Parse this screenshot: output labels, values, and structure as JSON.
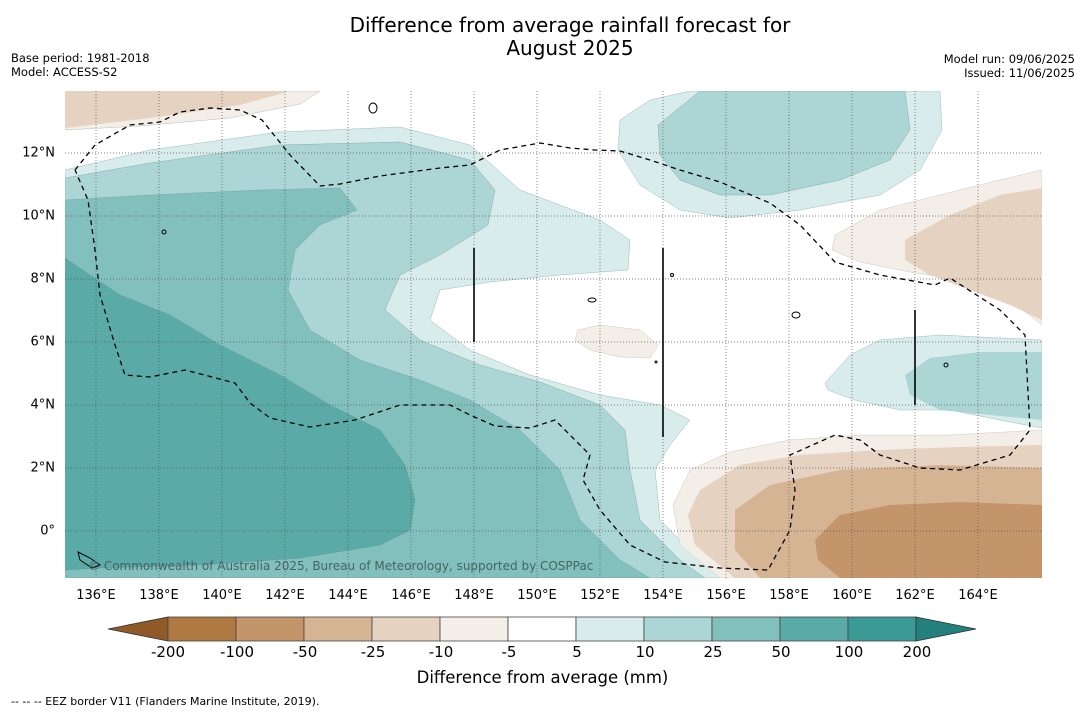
{
  "title_line1": "Difference from average rainfall forecast for",
  "title_line2": "August 2025",
  "base_period": "Base period: 1981-2018",
  "model": "Model: ACCESS-S2",
  "model_run": "Model run: 09/06/2025",
  "issued": "Issued: 11/06/2025",
  "copyright": "© Commonwealth of Australia 2025, Bureau of Meteorology, supported by COSPPac",
  "footnote": "--  --  -- EEZ border V11 (Flanders Marine Institute, 2019).",
  "map": {
    "lon_labels": [
      "136°E",
      "138°E",
      "140°E",
      "142°E",
      "144°E",
      "146°E",
      "148°E",
      "150°E",
      "152°E",
      "154°E",
      "156°E",
      "158°E",
      "160°E",
      "162°E",
      "164°E"
    ],
    "lat_labels": [
      "12°N",
      "10°N",
      "8°N",
      "6°N",
      "4°N",
      "2°N",
      "0°"
    ]
  },
  "colorbar": {
    "label": "Difference from average (mm)",
    "ticks": [
      "-200",
      "-100",
      "-50",
      "-25",
      "-10",
      "-5",
      "5",
      "10",
      "25",
      "50",
      "100",
      "200"
    ],
    "colors": [
      "#8f5a28",
      "#ae7a42",
      "#c4956a",
      "#d5b493",
      "#e6d2c0",
      "#f3eee8",
      "#ffffff",
      "#d9ecec",
      "#acd6d5",
      "#82c0bd",
      "#5aaaa7",
      "#3b9996",
      "#22807d"
    ]
  }
}
